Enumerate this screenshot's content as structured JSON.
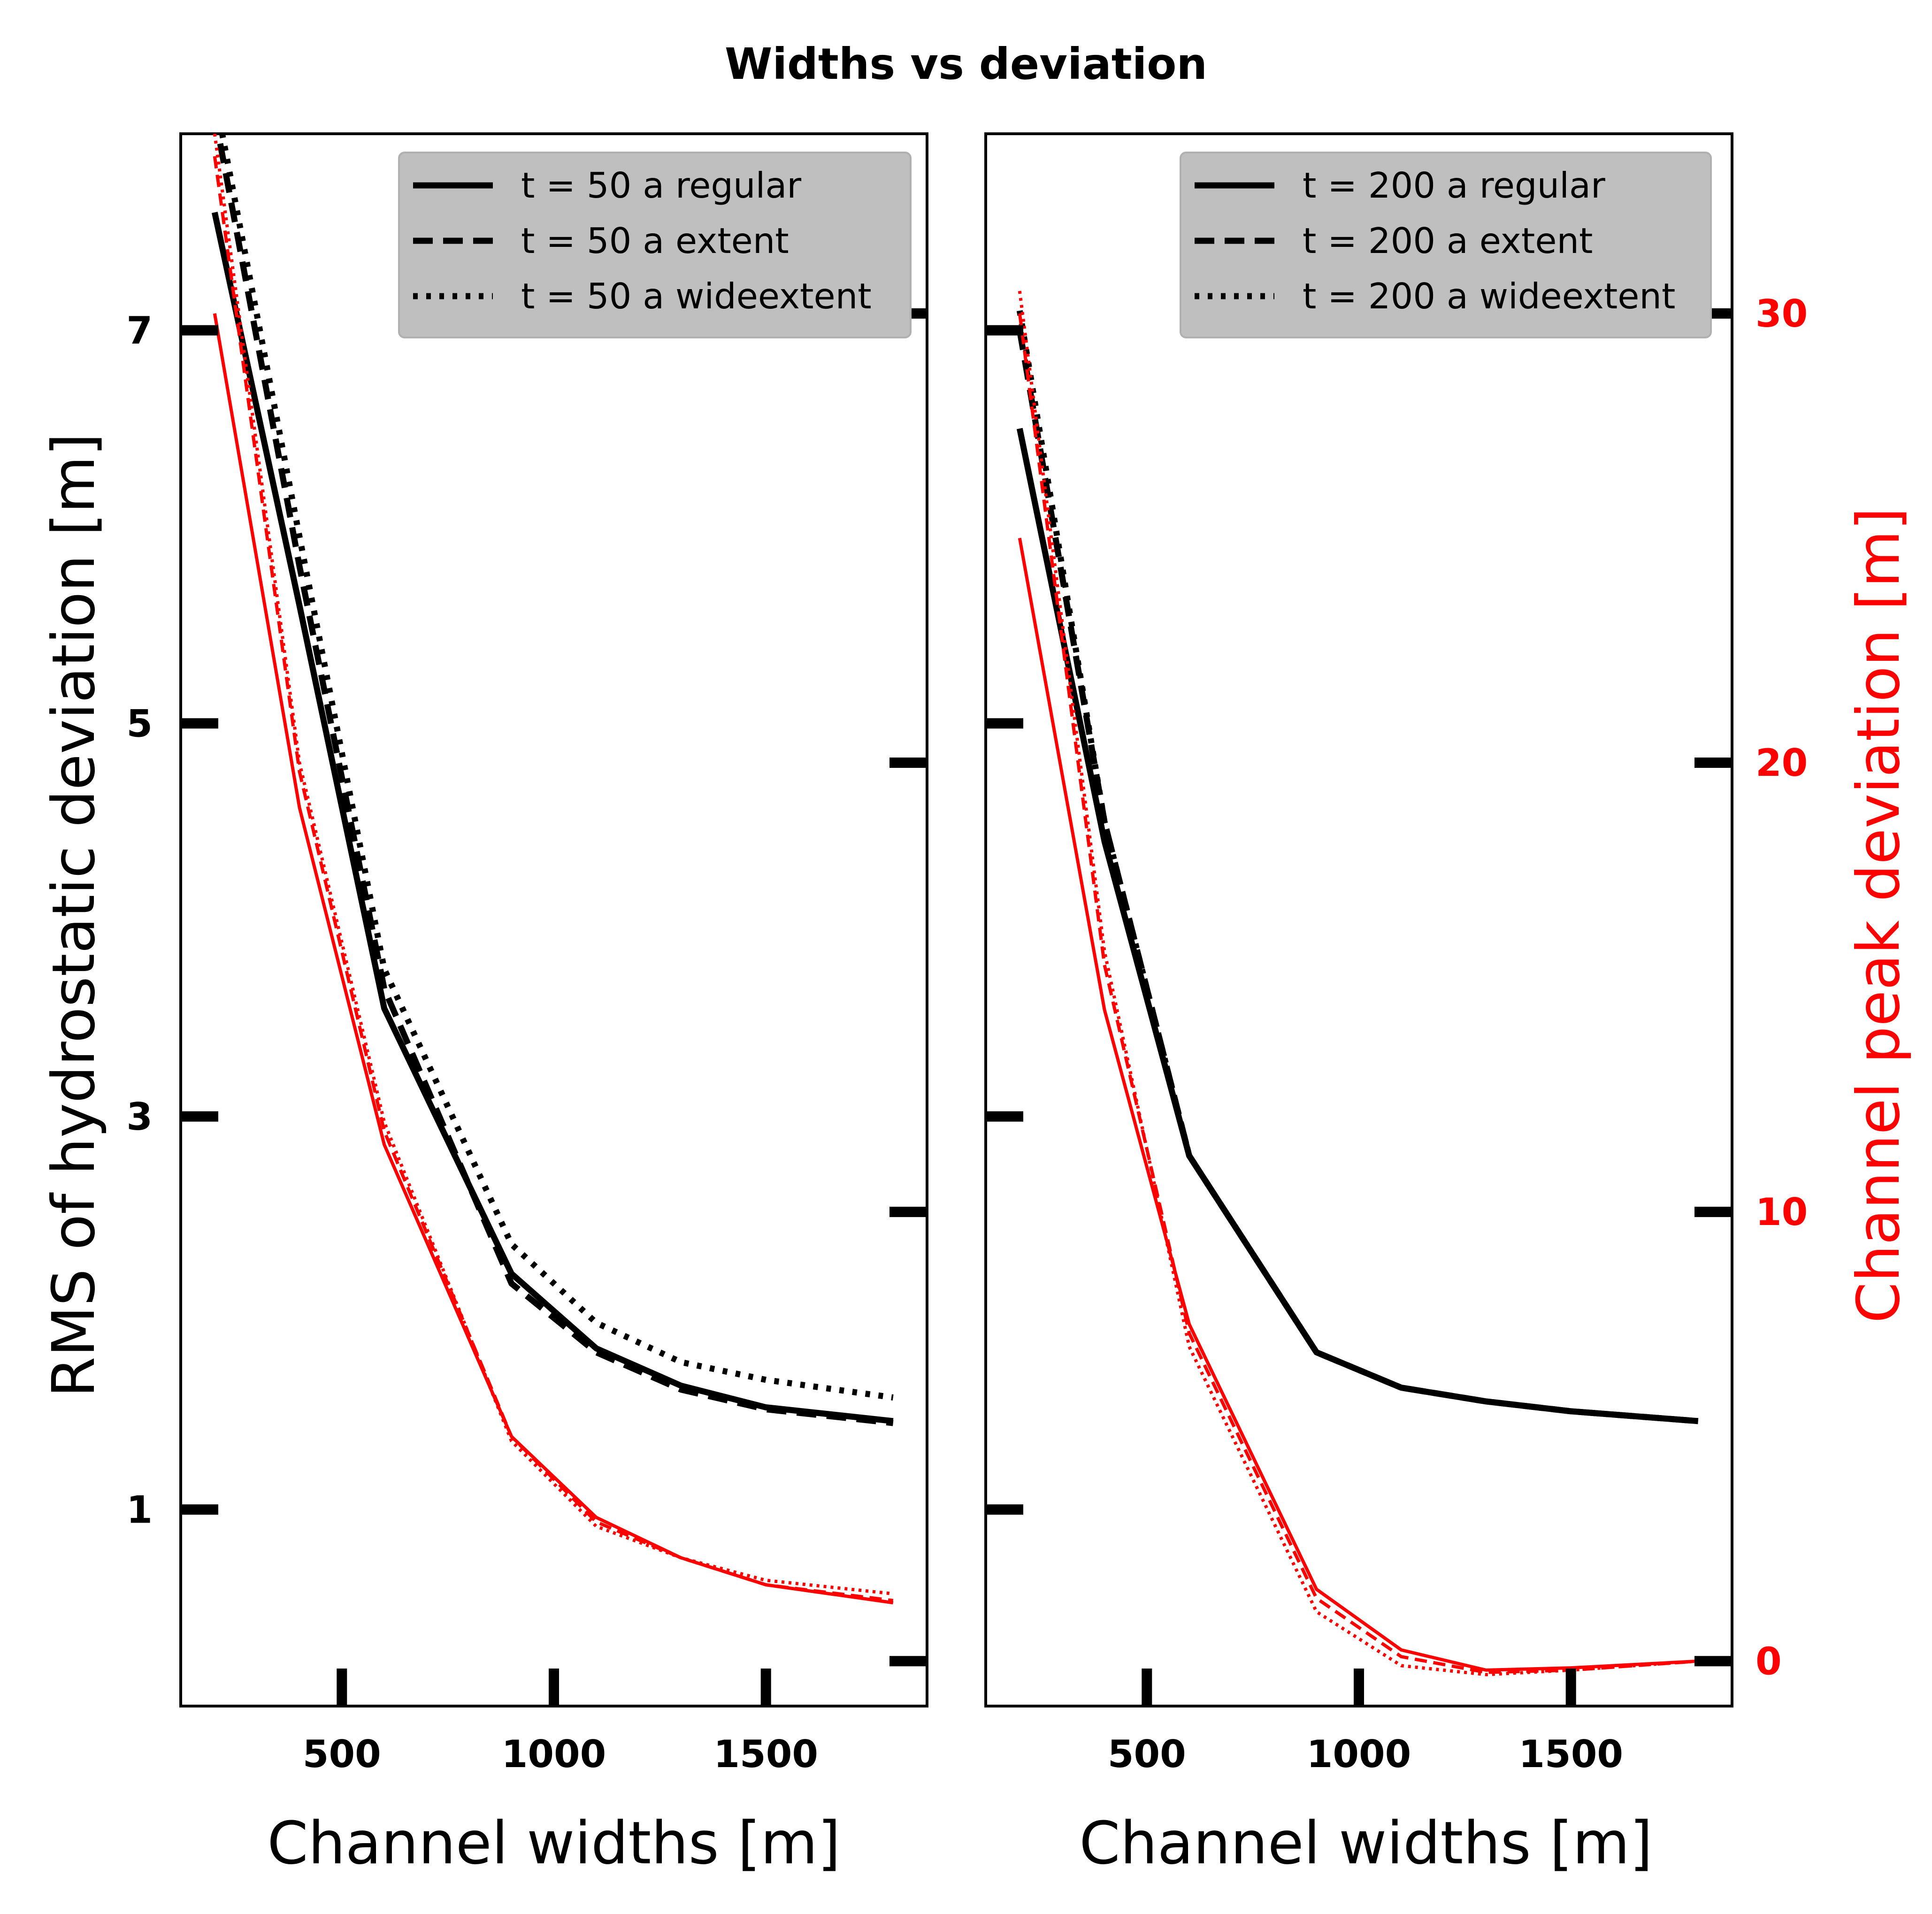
{
  "title": "Widths vs deviation",
  "colors": {
    "primary": "#000000",
    "secondary": "#ff0000",
    "legend_bg": "#bfbfbf"
  },
  "chart_data": [
    {
      "type": "line",
      "xlabel": "Channel widths [m]",
      "ylabel": "RMS of hydrostatic deviation [m]",
      "xlim": [
        120,
        1880
      ],
      "ylim": [
        -0.0,
        8.0
      ],
      "xticks": [
        500,
        1000,
        1500
      ],
      "yticks": [
        1,
        3,
        5,
        7
      ],
      "y2label": "",
      "y2lim": [
        -1,
        34
      ],
      "y2ticks": [
        0,
        10,
        20,
        30
      ],
      "legend_location": "upper right",
      "grid": false,
      "series": [
        {
          "name": "t = 50 a regular",
          "axis": "left",
          "style": "solid",
          "x": [
            200,
            400,
            600,
            900,
            1100,
            1300,
            1500,
            1800
          ],
          "y": [
            7.6,
            5.6,
            3.55,
            2.2,
            1.82,
            1.63,
            1.52,
            1.45
          ]
        },
        {
          "name": "t = 50 a extent",
          "axis": "left",
          "style": "dashed",
          "x": [
            200,
            400,
            600,
            900,
            1100,
            1300,
            1500,
            1800
          ],
          "y": [
            8.1,
            5.8,
            3.65,
            2.15,
            1.8,
            1.61,
            1.51,
            1.44
          ]
        },
        {
          "name": "t = 50 a wideextent",
          "axis": "left",
          "style": "dotted",
          "x": [
            200,
            400,
            600,
            900,
            1100,
            1300,
            1500,
            1800
          ],
          "y": [
            8.2,
            5.95,
            3.75,
            2.35,
            1.95,
            1.75,
            1.66,
            1.57
          ]
        },
        {
          "axis": "right",
          "style": "solid",
          "x": [
            200,
            400,
            600,
            900,
            1100,
            1300,
            1500,
            1800
          ],
          "y": [
            30.0,
            19.0,
            11.5,
            5.0,
            3.2,
            2.3,
            1.7,
            1.3
          ]
        },
        {
          "axis": "right",
          "style": "dashed",
          "x": [
            200,
            400,
            600,
            900,
            1100,
            1300,
            1500,
            1800
          ],
          "y": [
            33.5,
            19.8,
            11.8,
            5.0,
            3.1,
            2.3,
            1.7,
            1.35
          ]
        },
        {
          "axis": "right",
          "style": "dotted",
          "x": [
            200,
            400,
            600,
            900,
            1100,
            1300,
            1500,
            1800
          ],
          "y": [
            34.0,
            20.0,
            12.0,
            4.9,
            3.0,
            2.3,
            1.8,
            1.5
          ]
        }
      ]
    },
    {
      "type": "line",
      "xlabel": "Channel widths [m]",
      "ylabel": "",
      "xlim": [
        120,
        1880
      ],
      "ylim": [
        -0.0,
        8.0
      ],
      "xticks": [
        500,
        1000,
        1500
      ],
      "yticks": [],
      "y2label": "Channel peak deviation [m]",
      "y2lim": [
        -1,
        34
      ],
      "y2ticks": [
        0,
        10,
        20,
        30
      ],
      "legend_location": "upper right",
      "grid": false,
      "series": [
        {
          "name": "t = 200 a regular",
          "axis": "left",
          "style": "solid",
          "x": [
            200,
            400,
            600,
            900,
            1100,
            1300,
            1500,
            1800
          ],
          "y": [
            6.5,
            4.4,
            2.8,
            1.8,
            1.62,
            1.55,
            1.5,
            1.45
          ]
        },
        {
          "name": "t = 200 a extent",
          "axis": "left",
          "style": "dashed",
          "x": [
            200,
            400,
            600,
            900,
            1100,
            1300,
            1500,
            1800
          ],
          "y": [
            7.0,
            4.5,
            2.8,
            1.8,
            1.62,
            1.55,
            1.5,
            1.45
          ]
        },
        {
          "name": "t = 200 a wideextent",
          "axis": "left",
          "style": "dotted",
          "x": [
            200,
            400,
            600,
            900,
            1100,
            1300,
            1500,
            1800
          ],
          "y": [
            7.1,
            4.5,
            2.8,
            1.8,
            1.62,
            1.55,
            1.5,
            1.45
          ]
        },
        {
          "axis": "right",
          "style": "solid",
          "x": [
            200,
            400,
            600,
            900,
            1100,
            1300,
            1500,
            1800
          ],
          "y": [
            25.0,
            14.5,
            7.5,
            1.6,
            0.25,
            -0.2,
            -0.15,
            0.0
          ]
        },
        {
          "axis": "right",
          "style": "dashed",
          "x": [
            200,
            400,
            600,
            900,
            1100,
            1300,
            1500,
            1800
          ],
          "y": [
            30.0,
            15.5,
            7.3,
            1.4,
            0.1,
            -0.25,
            -0.2,
            0.0
          ]
        },
        {
          "axis": "right",
          "style": "dotted",
          "x": [
            200,
            400,
            600,
            900,
            1100,
            1300,
            1500,
            1800
          ],
          "y": [
            30.5,
            15.8,
            7.0,
            1.1,
            -0.1,
            -0.3,
            -0.2,
            0.0
          ]
        }
      ]
    }
  ]
}
